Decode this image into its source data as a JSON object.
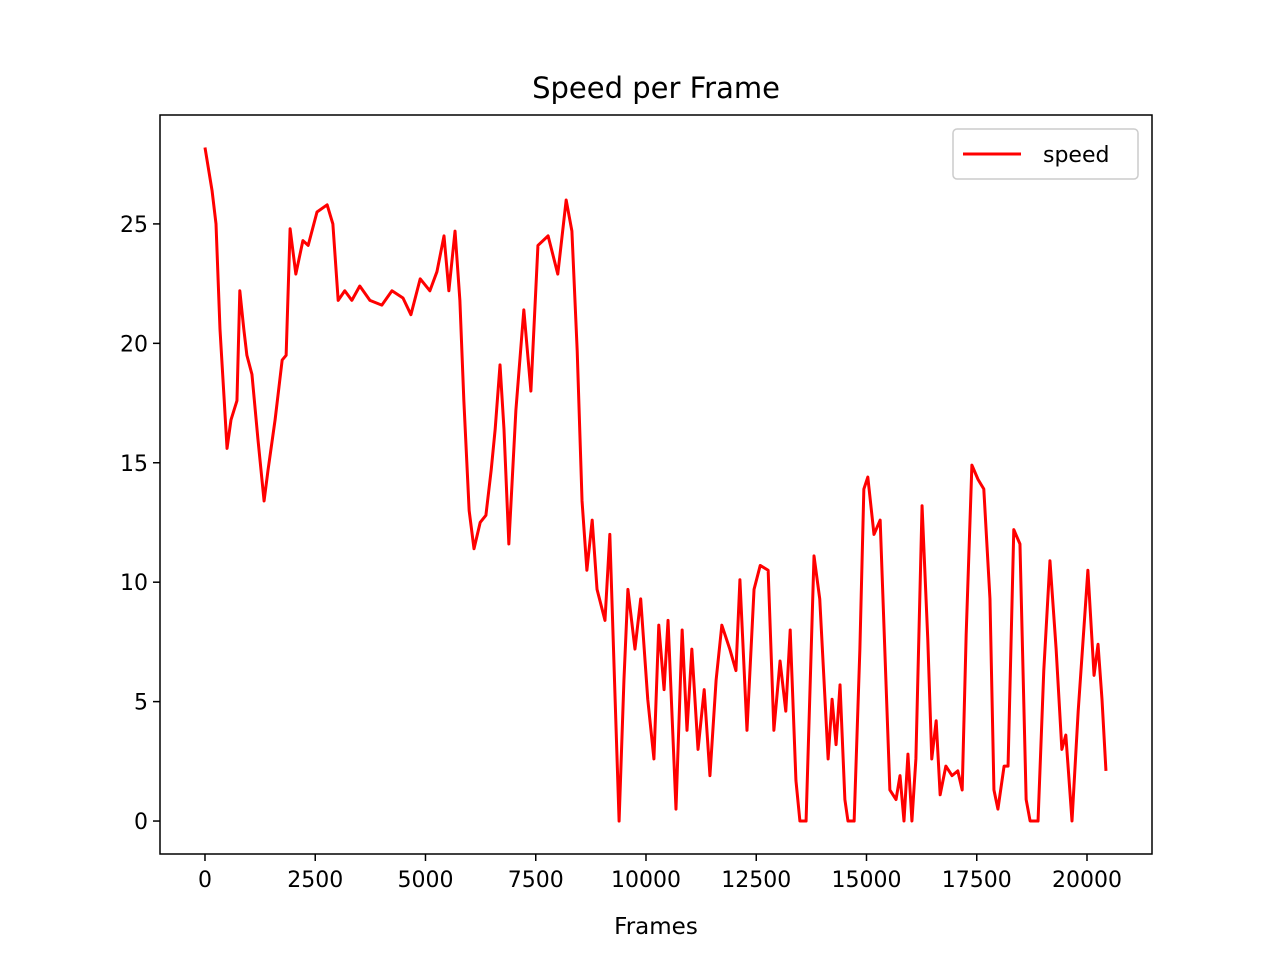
{
  "chart_data": {
    "type": "line",
    "title": "Speed per Frame",
    "x_label": "Frames",
    "xlim": [
      -1020,
      21474
    ],
    "ylim": [
      -1.38,
      29.56
    ],
    "xticks": [
      0,
      2500,
      5000,
      7500,
      10000,
      12500,
      15000,
      17500,
      20000
    ],
    "yticks": [
      0,
      5,
      10,
      15,
      20,
      25
    ],
    "grid": false,
    "legend": "upper right",
    "series": [
      {
        "name": "speed",
        "color": "#ff0000",
        "x": [
          0,
          160,
          250,
          340,
          430,
          500,
          590,
          725,
          790,
          880,
          950,
          1065,
          1200,
          1340,
          1430,
          1590,
          1750,
          1840,
          1930,
          2060,
          2220,
          2340,
          2540,
          2770,
          2900,
          3020,
          3170,
          3330,
          3510,
          3740,
          4010,
          4240,
          4490,
          4670,
          4880,
          5100,
          5260,
          5420,
          5530,
          5670,
          5780,
          5870,
          5990,
          6100,
          6240,
          6370,
          6490,
          6580,
          6690,
          6780,
          6890,
          7050,
          7230,
          7390,
          7550,
          7780,
          8000,
          8190,
          8320,
          8440,
          8550,
          8660,
          8780,
          8890,
          9070,
          9180,
          9300,
          9390,
          9500,
          9590,
          9750,
          9880,
          10040,
          10180,
          10290,
          10410,
          10500,
          10680,
          10820,
          10930,
          11040,
          11180,
          11320,
          11450,
          11590,
          11720,
          11900,
          12040,
          12130,
          12290,
          12450,
          12590,
          12770,
          12900,
          13040,
          13170,
          13270,
          13400,
          13490,
          13630,
          13810,
          13940,
          14130,
          14220,
          14310,
          14400,
          14510,
          14580,
          14720,
          14850,
          14940,
          15030,
          15170,
          15310,
          15440,
          15530,
          15670,
          15760,
          15850,
          15940,
          16030,
          16120,
          16260,
          16390,
          16480,
          16580,
          16670,
          16800,
          16940,
          17070,
          17170,
          17260,
          17390,
          17530,
          17660,
          17800,
          17890,
          17980,
          18120,
          18210,
          18340,
          18480,
          18620,
          18710,
          18890,
          19020,
          19160,
          19300,
          19430,
          19520,
          19660,
          19800,
          19890,
          20020,
          20160,
          20250,
          20340,
          20430
        ],
        "values": [
          28.2,
          26.4,
          25.0,
          20.6,
          17.8,
          15.6,
          16.8,
          17.6,
          22.2,
          20.6,
          19.5,
          18.7,
          16.0,
          13.4,
          14.7,
          16.8,
          19.3,
          19.5,
          24.8,
          22.9,
          24.3,
          24.1,
          25.5,
          25.8,
          25.0,
          21.8,
          22.2,
          21.8,
          22.4,
          21.8,
          21.6,
          22.2,
          21.9,
          21.2,
          22.7,
          22.2,
          23.0,
          24.5,
          22.2,
          24.7,
          21.8,
          17.6,
          13.0,
          11.4,
          12.5,
          12.8,
          14.7,
          16.4,
          19.1,
          16.4,
          11.6,
          17.2,
          21.4,
          18.0,
          24.1,
          24.5,
          22.9,
          26.0,
          24.7,
          19.7,
          13.4,
          10.5,
          12.6,
          9.7,
          8.4,
          12.0,
          5.1,
          0.0,
          5.9,
          9.7,
          7.2,
          9.3,
          5.1,
          2.6,
          8.2,
          5.5,
          8.4,
          0.5,
          8.0,
          3.8,
          7.2,
          3.0,
          5.5,
          1.9,
          5.9,
          8.2,
          7.2,
          6.3,
          10.1,
          3.8,
          9.7,
          10.7,
          10.5,
          3.8,
          6.7,
          4.6,
          8.0,
          1.7,
          0,
          0,
          11.1,
          9.3,
          2.6,
          5.1,
          3.2,
          5.7,
          0.9,
          0,
          0,
          7.2,
          13.9,
          14.4,
          12.0,
          12.6,
          5.9,
          1.3,
          0.9,
          1.9,
          0,
          2.8,
          0,
          2.6,
          13.2,
          7.6,
          2.6,
          4.2,
          1.1,
          2.3,
          1.9,
          2.1,
          1.3,
          7.8,
          14.9,
          14.3,
          13.9,
          9.3,
          1.3,
          0.5,
          2.3,
          2.3,
          12.2,
          11.6,
          0.9,
          0,
          0,
          6.3,
          10.9,
          7.2,
          3.0,
          3.6,
          0,
          4.6,
          7.0,
          10.5,
          6.1,
          7.4,
          5.1,
          2.1
        ]
      }
    ]
  }
}
